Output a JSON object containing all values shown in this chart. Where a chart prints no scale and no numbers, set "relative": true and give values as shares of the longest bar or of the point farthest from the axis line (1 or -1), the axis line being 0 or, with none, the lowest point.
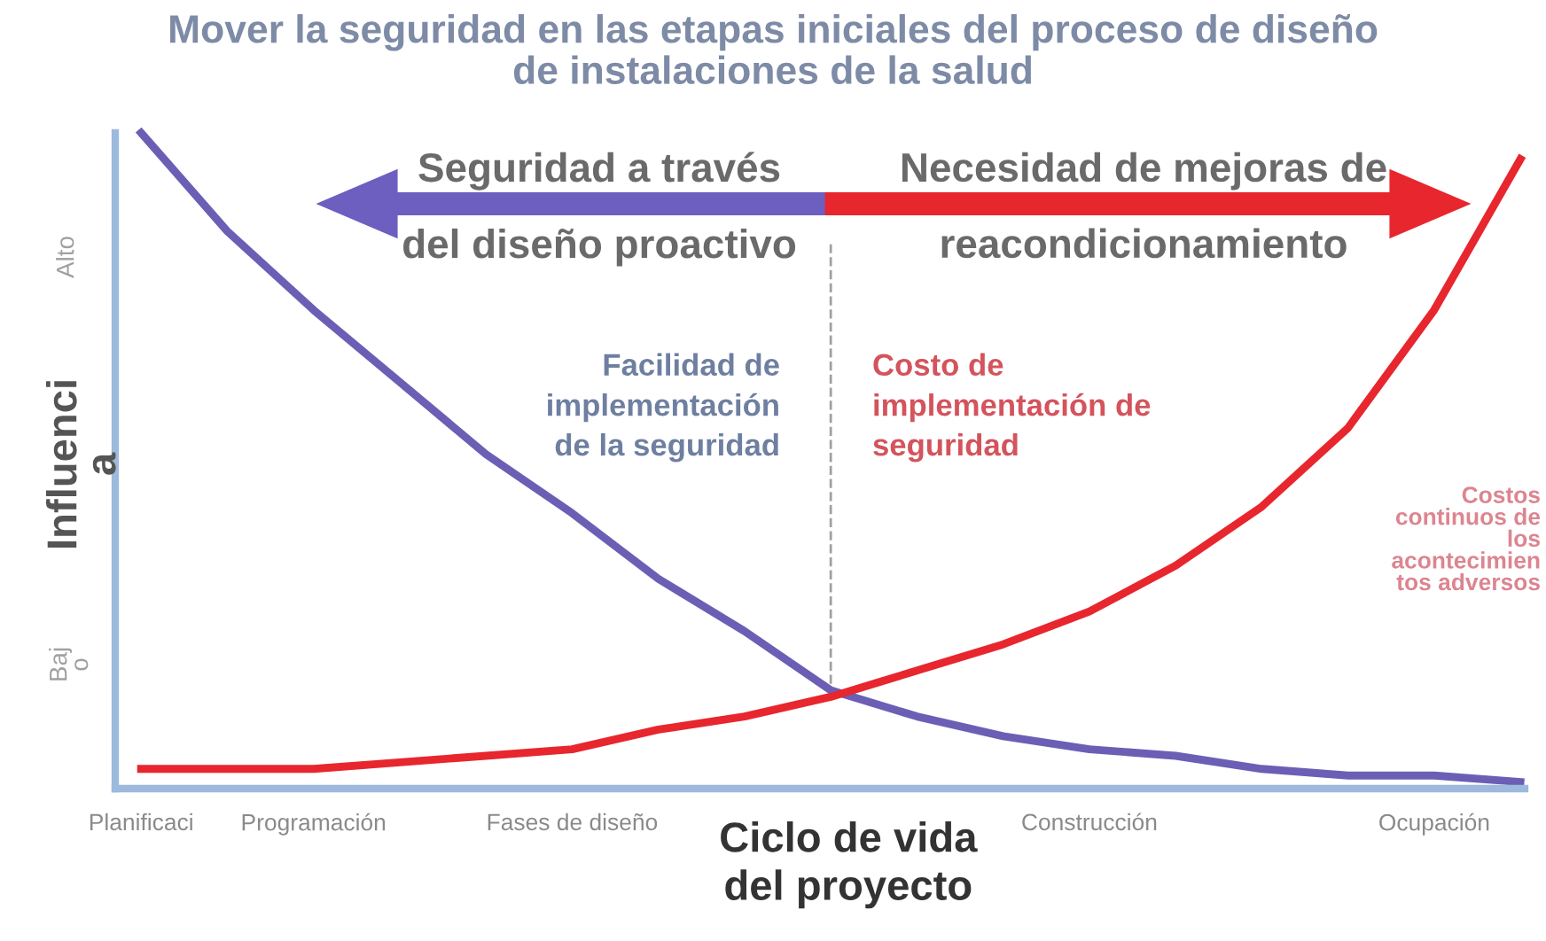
{
  "chart_data": {
    "type": "line",
    "relative": true,
    "title": "Mover la seguridad en las etapas iniciales del proceso de diseño\nde instalaciones de la salud",
    "xlabel": "Ciclo de vida\ndel proyecto",
    "ylabel": "Influenci\na",
    "categories": [
      "Planificaci",
      null,
      "Programación",
      null,
      null,
      "Fases de diseño",
      null,
      null,
      null,
      null,
      null,
      "Construcción",
      null,
      null,
      null,
      "Ocupación",
      null
    ],
    "series": [
      {
        "color": "#6b5fb5",
        "values": [
          1.0,
          0.85,
          0.73,
          0.62,
          0.51,
          0.42,
          0.32,
          0.24,
          0.15,
          0.11,
          0.08,
          0.06,
          0.05,
          0.03,
          0.02,
          0.02,
          0.01
        ]
      },
      {
        "color": "#e8262e",
        "values": [
          0.03,
          0.03,
          0.03,
          0.04,
          0.05,
          0.06,
          0.09,
          0.11,
          0.14,
          0.18,
          0.22,
          0.27,
          0.34,
          0.43,
          0.55,
          0.73,
          0.96
        ]
      }
    ],
    "annotations": [
      "Alto",
      "Baj\no",
      "Seguridad a través\ndel diseño proactivo",
      "Necesidad de mejoras de\nreacondicionamiento",
      "Facilidad de\nimplementación\nde la seguridad",
      "Costo de\nimplementación de\nseguridad",
      "Costos\ncontinuos de\nlos\nacontecimien\ntos adversos"
    ],
    "grid": false,
    "legend": false,
    "marker": "none",
    "line_style": "solid"
  }
}
